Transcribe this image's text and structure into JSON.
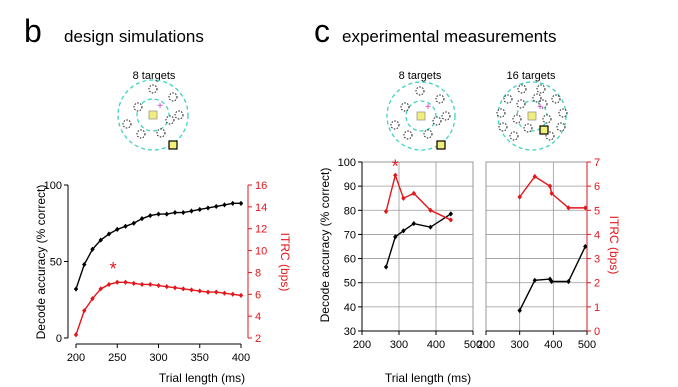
{
  "panels": {
    "b": {
      "letter": "b",
      "title": "design simulations"
    },
    "c": {
      "letter": "c",
      "title": "experimental measurements"
    }
  },
  "layouts": {
    "b": {
      "label": "8 targets"
    },
    "c1": {
      "label": "8 targets"
    },
    "c2": {
      "label": "16 targets"
    }
  },
  "colors": {
    "accuracy": "#000000",
    "itrc": "#e3161c",
    "ring": "#3fd3c0",
    "target_fill": "#f2ee7a",
    "cursor": "#cc33cc",
    "grid": "#9a9a9a"
  },
  "chart_data": [
    {
      "type": "line",
      "panel": "b",
      "xlabel": "Trial length (ms)",
      "ylabel": "Decode accuracy (% correct)",
      "y2label": "ITRC (bps)",
      "xlim": [
        200,
        400
      ],
      "ylim": [
        0,
        100
      ],
      "y2lim": [
        2,
        16
      ],
      "xticks": [
        200,
        250,
        300,
        350,
        400
      ],
      "yticks": [
        0,
        50,
        100
      ],
      "y2ticks": [
        2,
        4,
        6,
        8,
        10,
        12,
        14,
        16
      ],
      "grid": false,
      "annotation": "*",
      "annotation_point": {
        "series": "ITRC",
        "x": 245,
        "y": 7.4
      },
      "series": [
        {
          "axis": "left",
          "color": "#000000",
          "x": [
            200,
            210,
            220,
            230,
            240,
            250,
            260,
            270,
            280,
            290,
            300,
            310,
            320,
            330,
            340,
            350,
            360,
            370,
            380,
            390,
            400
          ],
          "y": [
            32,
            48,
            58,
            64,
            68,
            71,
            73,
            75,
            78,
            80,
            81,
            81,
            82,
            82,
            83,
            84,
            85,
            86,
            87,
            88,
            88
          ]
        },
        {
          "axis": "right",
          "color": "#e3161c",
          "x": [
            200,
            210,
            220,
            230,
            240,
            250,
            260,
            270,
            280,
            290,
            300,
            310,
            320,
            330,
            340,
            350,
            360,
            370,
            380,
            390,
            400
          ],
          "y": [
            2.3,
            4.5,
            5.6,
            6.5,
            6.9,
            7.1,
            7.1,
            7.0,
            6.9,
            6.9,
            6.8,
            6.7,
            6.6,
            6.5,
            6.4,
            6.3,
            6.2,
            6.2,
            6.1,
            6.0,
            5.9
          ]
        }
      ]
    },
    {
      "type": "line",
      "panel": "c",
      "title": "8 targets",
      "xlabel": "",
      "ylabel": "Decode accuracy (% correct)",
      "xlim": [
        200,
        500
      ],
      "ylim": [
        30,
        100
      ],
      "y2lim": [
        0,
        7
      ],
      "xticks": [
        200,
        300,
        400,
        500
      ],
      "yticks": [
        30,
        40,
        50,
        60,
        70,
        80,
        90,
        100
      ],
      "grid": true,
      "annotation": "*",
      "annotation_point": {
        "series": "ITRC",
        "x": 290,
        "y": 6.4
      },
      "series": [
        {
          "axis": "left",
          "color": "#000000",
          "x": [
            265,
            290,
            312,
            340,
            385,
            440
          ],
          "y": [
            56.5,
            69,
            71.5,
            74.5,
            73,
            78.5
          ]
        },
        {
          "axis": "right",
          "color": "#e3161c",
          "x": [
            265,
            290,
            312,
            340,
            385,
            440
          ],
          "y": [
            4.95,
            6.45,
            5.5,
            5.7,
            5.0,
            4.6
          ]
        }
      ]
    },
    {
      "type": "line",
      "panel": "c",
      "title": "16 targets",
      "xlabel": "",
      "y2label": "ITRC (bps)",
      "xlim": [
        200,
        500
      ],
      "ylim": [
        30,
        100
      ],
      "y2lim": [
        0,
        7
      ],
      "xticks": [
        200,
        300,
        400,
        500
      ],
      "y2ticks": [
        0,
        1,
        2,
        3,
        4,
        5,
        6,
        7
      ],
      "grid": true,
      "series": [
        {
          "axis": "left",
          "color": "#000000",
          "x": [
            300,
            345,
            390,
            395,
            445,
            495
          ],
          "y": [
            38.5,
            51,
            51.5,
            50.5,
            50.5,
            65
          ]
        },
        {
          "axis": "right",
          "color": "#e3161c",
          "x": [
            300,
            345,
            390,
            395,
            445,
            495
          ],
          "y": [
            5.55,
            6.4,
            6.0,
            5.7,
            5.1,
            5.1
          ]
        }
      ]
    }
  ],
  "shared_xlabel": "Trial length (ms)"
}
